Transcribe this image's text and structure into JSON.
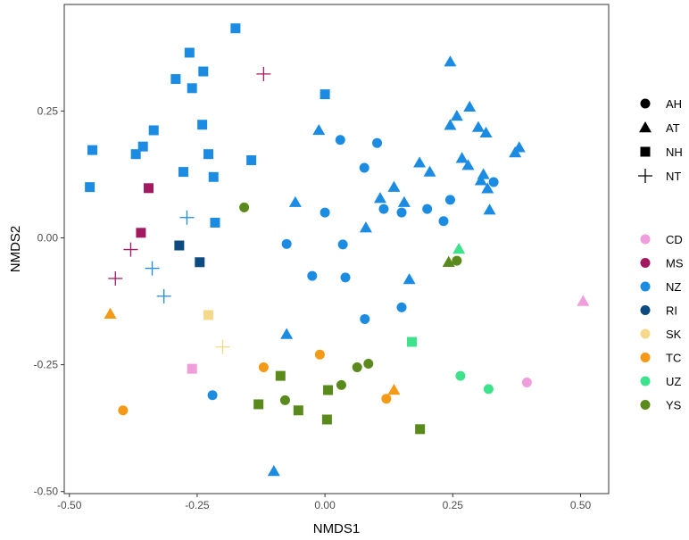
{
  "chart_data": {
    "type": "scatter",
    "xlabel": "NMDS1",
    "ylabel": "NMDS2",
    "xlim": [
      -0.51,
      0.555
    ],
    "ylim": [
      -0.504,
      0.46
    ],
    "x_ticks": [
      -0.5,
      -0.25,
      0.0,
      0.25,
      0.5
    ],
    "x_tick_labels": [
      "-0.50",
      "-0.25",
      "0.00",
      "0.25",
      "0.50"
    ],
    "y_ticks": [
      -0.5,
      -0.25,
      0.0,
      0.25
    ],
    "y_tick_labels": [
      "-0.50",
      "-0.25",
      "0.00",
      "0.25"
    ],
    "grid": false,
    "legend_position": "right",
    "shape_legend": [
      {
        "key": "AH",
        "label": "AH",
        "shape": "circle"
      },
      {
        "key": "AT",
        "label": "AT",
        "shape": "triangle"
      },
      {
        "key": "NH",
        "label": "NH",
        "shape": "square"
      },
      {
        "key": "NT",
        "label": "NT",
        "shape": "plus"
      }
    ],
    "color_legend": [
      {
        "key": "CD",
        "label": "CD",
        "color": "#f09ddc"
      },
      {
        "key": "MS",
        "label": "MS",
        "color": "#a2195f"
      },
      {
        "key": "NZ",
        "label": "NZ",
        "color": "#1c8ce3"
      },
      {
        "key": "RI",
        "label": "RI",
        "color": "#0d4a80"
      },
      {
        "key": "SK",
        "label": "SK",
        "color": "#f5d98a"
      },
      {
        "key": "TC",
        "label": "TC",
        "color": "#f49a16"
      },
      {
        "key": "UZ",
        "label": "UZ",
        "color": "#3fe28c"
      },
      {
        "key": "YS",
        "label": "YS",
        "color": "#5a8a1c"
      }
    ],
    "points": [
      {
        "x": -0.455,
        "y": 0.173,
        "shape": "NH",
        "color": "NZ"
      },
      {
        "x": -0.46,
        "y": 0.1,
        "shape": "NH",
        "color": "NZ"
      },
      {
        "x": -0.37,
        "y": 0.165,
        "shape": "NH",
        "color": "NZ"
      },
      {
        "x": -0.356,
        "y": 0.18,
        "shape": "NH",
        "color": "NZ"
      },
      {
        "x": -0.335,
        "y": 0.212,
        "shape": "NH",
        "color": "NZ"
      },
      {
        "x": -0.292,
        "y": 0.313,
        "shape": "NH",
        "color": "NZ"
      },
      {
        "x": -0.265,
        "y": 0.365,
        "shape": "NH",
        "color": "NZ"
      },
      {
        "x": -0.26,
        "y": 0.295,
        "shape": "NH",
        "color": "NZ"
      },
      {
        "x": -0.238,
        "y": 0.328,
        "shape": "NH",
        "color": "NZ"
      },
      {
        "x": -0.24,
        "y": 0.223,
        "shape": "NH",
        "color": "NZ"
      },
      {
        "x": -0.175,
        "y": 0.413,
        "shape": "NH",
        "color": "NZ"
      },
      {
        "x": -0.277,
        "y": 0.13,
        "shape": "NH",
        "color": "NZ"
      },
      {
        "x": -0.228,
        "y": 0.165,
        "shape": "NH",
        "color": "NZ"
      },
      {
        "x": -0.218,
        "y": 0.12,
        "shape": "NH",
        "color": "NZ"
      },
      {
        "x": -0.144,
        "y": 0.153,
        "shape": "NH",
        "color": "NZ"
      },
      {
        "x": -0.215,
        "y": 0.03,
        "shape": "NH",
        "color": "NZ"
      },
      {
        "x": 0.0,
        "y": 0.283,
        "shape": "NH",
        "color": "NZ"
      },
      {
        "x": -0.345,
        "y": 0.098,
        "shape": "NH",
        "color": "MS"
      },
      {
        "x": -0.36,
        "y": 0.01,
        "shape": "NH",
        "color": "MS"
      },
      {
        "x": -0.285,
        "y": -0.015,
        "shape": "NH",
        "color": "RI"
      },
      {
        "x": -0.245,
        "y": -0.048,
        "shape": "NH",
        "color": "RI"
      },
      {
        "x": -0.228,
        "y": -0.152,
        "shape": "NH",
        "color": "SK"
      },
      {
        "x": -0.26,
        "y": -0.258,
        "shape": "NH",
        "color": "CD"
      },
      {
        "x": 0.17,
        "y": -0.205,
        "shape": "NH",
        "color": "UZ"
      },
      {
        "x": -0.087,
        "y": -0.272,
        "shape": "NH",
        "color": "YS"
      },
      {
        "x": -0.13,
        "y": -0.328,
        "shape": "NH",
        "color": "YS"
      },
      {
        "x": -0.052,
        "y": -0.34,
        "shape": "NH",
        "color": "YS"
      },
      {
        "x": 0.006,
        "y": -0.3,
        "shape": "NH",
        "color": "YS"
      },
      {
        "x": 0.004,
        "y": -0.358,
        "shape": "NH",
        "color": "YS"
      },
      {
        "x": 0.186,
        "y": -0.377,
        "shape": "NH",
        "color": "YS"
      },
      {
        "x": -0.12,
        "y": 0.323,
        "shape": "NT",
        "color": "MS"
      },
      {
        "x": -0.38,
        "y": -0.023,
        "shape": "NT",
        "color": "MS"
      },
      {
        "x": -0.41,
        "y": -0.08,
        "shape": "NT",
        "color": "MS"
      },
      {
        "x": -0.27,
        "y": 0.04,
        "shape": "NT",
        "color": "NZ"
      },
      {
        "x": -0.338,
        "y": -0.06,
        "shape": "NT",
        "color": "NZ"
      },
      {
        "x": -0.315,
        "y": -0.115,
        "shape": "NT",
        "color": "NZ"
      },
      {
        "x": -0.2,
        "y": -0.215,
        "shape": "NT",
        "color": "SK"
      },
      {
        "x": 0.03,
        "y": 0.193,
        "shape": "AH",
        "color": "NZ"
      },
      {
        "x": 0.102,
        "y": 0.187,
        "shape": "AH",
        "color": "NZ"
      },
      {
        "x": 0.077,
        "y": 0.138,
        "shape": "AH",
        "color": "NZ"
      },
      {
        "x": 0.0,
        "y": 0.05,
        "shape": "AH",
        "color": "NZ"
      },
      {
        "x": -0.075,
        "y": -0.012,
        "shape": "AH",
        "color": "NZ"
      },
      {
        "x": 0.035,
        "y": -0.013,
        "shape": "AH",
        "color": "NZ"
      },
      {
        "x": -0.025,
        "y": -0.075,
        "shape": "AH",
        "color": "NZ"
      },
      {
        "x": 0.04,
        "y": -0.078,
        "shape": "AH",
        "color": "NZ"
      },
      {
        "x": 0.115,
        "y": 0.057,
        "shape": "AH",
        "color": "NZ"
      },
      {
        "x": 0.15,
        "y": 0.05,
        "shape": "AH",
        "color": "NZ"
      },
      {
        "x": 0.2,
        "y": 0.057,
        "shape": "AH",
        "color": "NZ"
      },
      {
        "x": 0.232,
        "y": 0.033,
        "shape": "AH",
        "color": "NZ"
      },
      {
        "x": 0.245,
        "y": 0.075,
        "shape": "AH",
        "color": "NZ"
      },
      {
        "x": 0.33,
        "y": 0.11,
        "shape": "AH",
        "color": "NZ"
      },
      {
        "x": 0.078,
        "y": -0.16,
        "shape": "AH",
        "color": "NZ"
      },
      {
        "x": 0.15,
        "y": -0.137,
        "shape": "AH",
        "color": "NZ"
      },
      {
        "x": -0.22,
        "y": -0.31,
        "shape": "AH",
        "color": "NZ"
      },
      {
        "x": -0.395,
        "y": -0.34,
        "shape": "AH",
        "color": "TC"
      },
      {
        "x": -0.12,
        "y": -0.255,
        "shape": "AH",
        "color": "TC"
      },
      {
        "x": -0.01,
        "y": -0.23,
        "shape": "AH",
        "color": "TC"
      },
      {
        "x": 0.12,
        "y": -0.317,
        "shape": "AH",
        "color": "TC"
      },
      {
        "x": 0.395,
        "y": -0.285,
        "shape": "AH",
        "color": "CD"
      },
      {
        "x": 0.265,
        "y": -0.272,
        "shape": "AH",
        "color": "UZ"
      },
      {
        "x": 0.32,
        "y": -0.298,
        "shape": "AH",
        "color": "UZ"
      },
      {
        "x": -0.158,
        "y": 0.06,
        "shape": "AH",
        "color": "YS"
      },
      {
        "x": -0.078,
        "y": -0.32,
        "shape": "AH",
        "color": "YS"
      },
      {
        "x": 0.032,
        "y": -0.29,
        "shape": "AH",
        "color": "YS"
      },
      {
        "x": 0.063,
        "y": -0.255,
        "shape": "AH",
        "color": "YS"
      },
      {
        "x": 0.085,
        "y": -0.248,
        "shape": "AH",
        "color": "YS"
      },
      {
        "x": 0.258,
        "y": -0.045,
        "shape": "AH",
        "color": "YS"
      },
      {
        "x": 0.245,
        "y": 0.347,
        "shape": "AT",
        "color": "NZ"
      },
      {
        "x": 0.283,
        "y": 0.258,
        "shape": "AT",
        "color": "NZ"
      },
      {
        "x": 0.258,
        "y": 0.24,
        "shape": "AT",
        "color": "NZ"
      },
      {
        "x": 0.245,
        "y": 0.222,
        "shape": "AT",
        "color": "NZ"
      },
      {
        "x": 0.3,
        "y": 0.218,
        "shape": "AT",
        "color": "NZ"
      },
      {
        "x": 0.315,
        "y": 0.207,
        "shape": "AT",
        "color": "NZ"
      },
      {
        "x": 0.38,
        "y": 0.178,
        "shape": "AT",
        "color": "NZ"
      },
      {
        "x": 0.372,
        "y": 0.168,
        "shape": "AT",
        "color": "NZ"
      },
      {
        "x": 0.268,
        "y": 0.157,
        "shape": "AT",
        "color": "NZ"
      },
      {
        "x": 0.28,
        "y": 0.143,
        "shape": "AT",
        "color": "NZ"
      },
      {
        "x": 0.185,
        "y": 0.148,
        "shape": "AT",
        "color": "NZ"
      },
      {
        "x": 0.205,
        "y": 0.13,
        "shape": "AT",
        "color": "NZ"
      },
      {
        "x": 0.31,
        "y": 0.125,
        "shape": "AT",
        "color": "NZ"
      },
      {
        "x": 0.305,
        "y": 0.113,
        "shape": "AT",
        "color": "NZ"
      },
      {
        "x": 0.318,
        "y": 0.097,
        "shape": "AT",
        "color": "NZ"
      },
      {
        "x": 0.322,
        "y": 0.055,
        "shape": "AT",
        "color": "NZ"
      },
      {
        "x": 0.135,
        "y": 0.1,
        "shape": "AT",
        "color": "NZ"
      },
      {
        "x": 0.108,
        "y": 0.078,
        "shape": "AT",
        "color": "NZ"
      },
      {
        "x": 0.155,
        "y": 0.07,
        "shape": "AT",
        "color": "NZ"
      },
      {
        "x": 0.08,
        "y": 0.02,
        "shape": "AT",
        "color": "NZ"
      },
      {
        "x": -0.012,
        "y": 0.212,
        "shape": "AT",
        "color": "NZ"
      },
      {
        "x": -0.058,
        "y": 0.07,
        "shape": "AT",
        "color": "NZ"
      },
      {
        "x": 0.165,
        "y": -0.082,
        "shape": "AT",
        "color": "NZ"
      },
      {
        "x": -0.075,
        "y": -0.19,
        "shape": "AT",
        "color": "NZ"
      },
      {
        "x": -0.1,
        "y": -0.46,
        "shape": "AT",
        "color": "NZ"
      },
      {
        "x": -0.42,
        "y": -0.15,
        "shape": "AT",
        "color": "TC"
      },
      {
        "x": 0.135,
        "y": -0.3,
        "shape": "AT",
        "color": "TC"
      },
      {
        "x": 0.505,
        "y": -0.125,
        "shape": "AT",
        "color": "CD"
      },
      {
        "x": 0.262,
        "y": -0.022,
        "shape": "AT",
        "color": "UZ"
      },
      {
        "x": 0.242,
        "y": -0.048,
        "shape": "AT",
        "color": "YS"
      }
    ]
  }
}
